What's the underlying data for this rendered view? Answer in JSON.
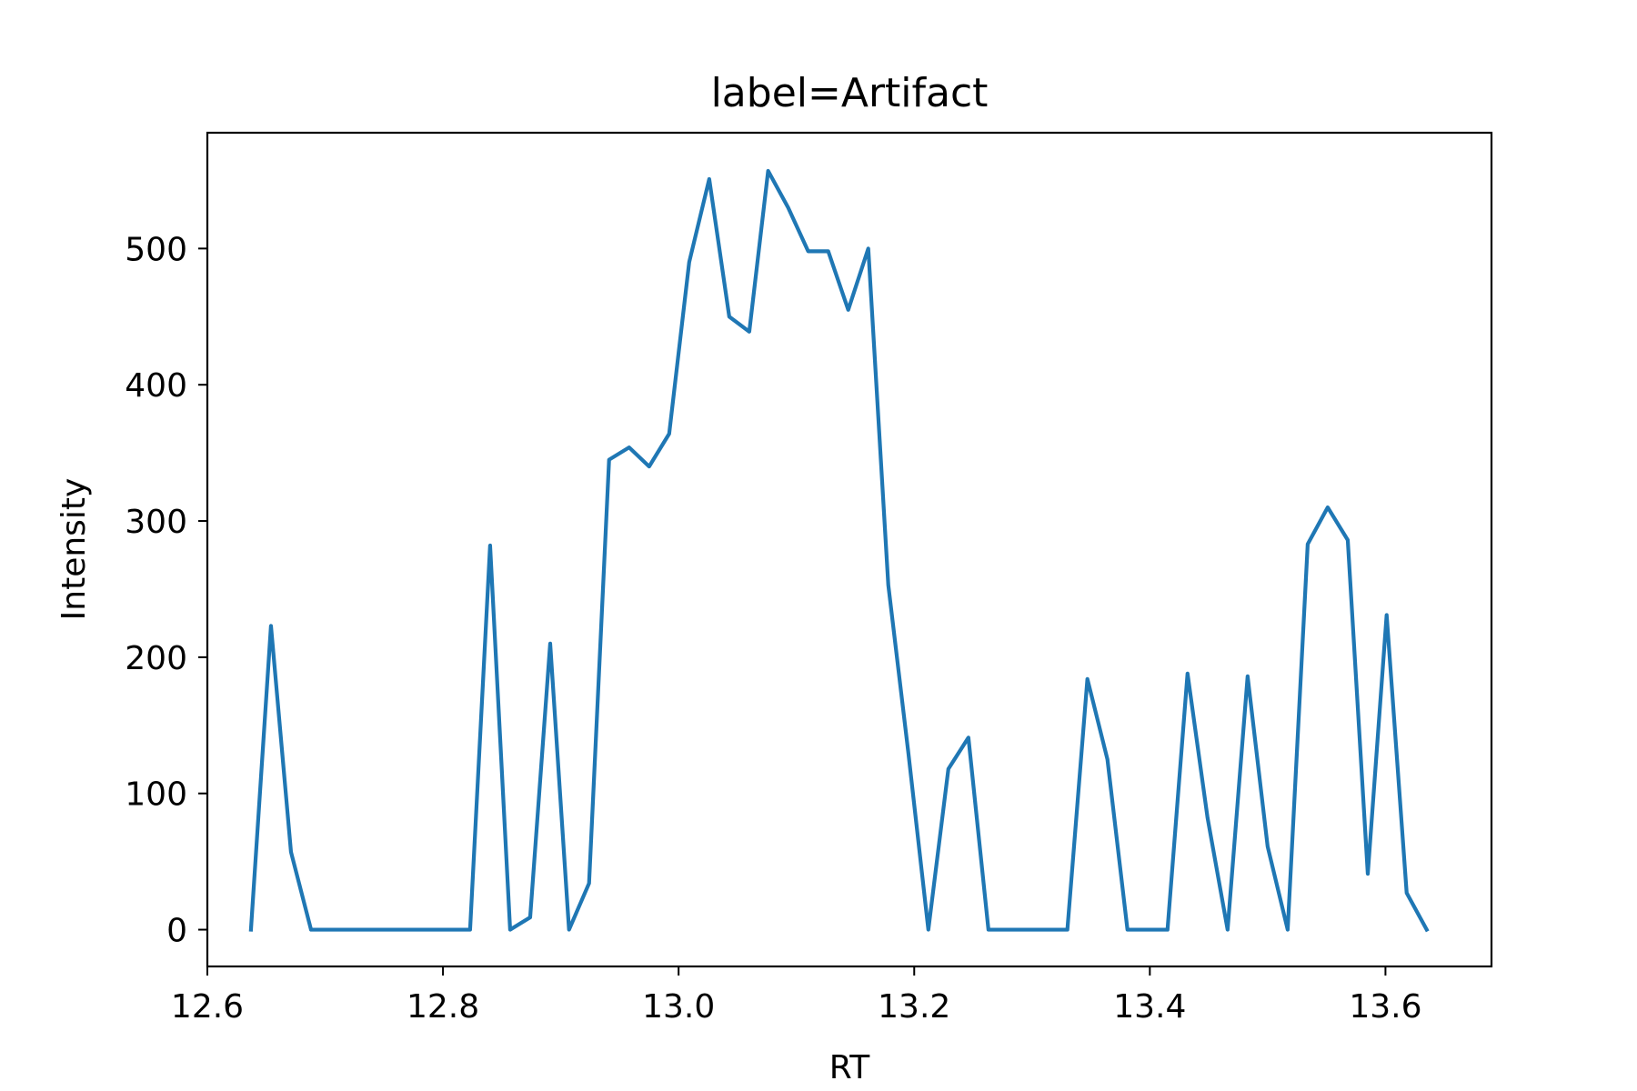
{
  "chart_data": {
    "type": "line",
    "title": "label=Artifact",
    "xlabel": "RT",
    "ylabel": "Intensity",
    "xlim": [
      12.6,
      13.69
    ],
    "ylim": [
      -27,
      585
    ],
    "grid": false,
    "xticks": [
      12.6,
      12.8,
      13.0,
      13.2,
      13.4,
      13.6
    ],
    "xtick_labels": [
      "12.6",
      "12.8",
      "13.0",
      "13.2",
      "13.4",
      "13.6"
    ],
    "yticks": [
      0,
      100,
      200,
      300,
      400,
      500
    ],
    "ytick_labels": [
      "0",
      "100",
      "200",
      "300",
      "400",
      "500"
    ],
    "series": [
      {
        "color": "#1f77b4",
        "x": [
          12.637,
          12.654,
          12.671,
          12.688,
          12.705,
          12.722,
          12.739,
          12.756,
          12.773,
          12.789,
          12.806,
          12.823,
          12.84,
          12.857,
          12.874,
          12.891,
          12.907,
          12.924,
          12.941,
          12.958,
          12.975,
          12.992,
          13.009,
          13.026,
          13.043,
          13.06,
          13.076,
          13.093,
          13.11,
          13.127,
          13.144,
          13.161,
          13.178,
          13.195,
          13.212,
          13.229,
          13.246,
          13.263,
          13.28,
          13.297,
          13.313,
          13.33,
          13.347,
          13.364,
          13.381,
          13.398,
          13.415,
          13.432,
          13.449,
          13.466,
          13.483,
          13.5,
          13.517,
          13.534,
          13.551,
          13.568,
          13.585,
          13.601,
          13.618,
          13.635
        ],
        "y": [
          0,
          223,
          57,
          0,
          0,
          0,
          0,
          0,
          0,
          0,
          0,
          0,
          282,
          0,
          9,
          210,
          0,
          34,
          345,
          354,
          340,
          364,
          490,
          551,
          450,
          439,
          557,
          530,
          498,
          498,
          455,
          500,
          253,
          130,
          0,
          118,
          141,
          0,
          0,
          0,
          0,
          0,
          184,
          125,
          0,
          0,
          0,
          188,
          82,
          0,
          186,
          61,
          0,
          283,
          310,
          286,
          41,
          231,
          27,
          0
        ]
      }
    ]
  }
}
